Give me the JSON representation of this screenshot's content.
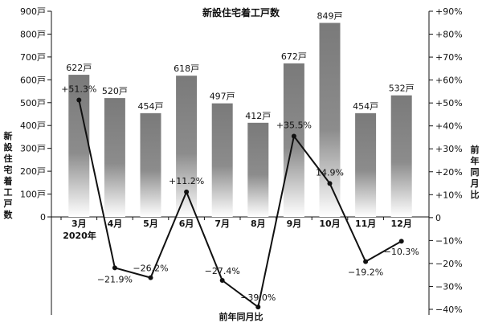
{
  "chart_data": {
    "type": "bar+line",
    "title": "新設住宅着工戸数",
    "categories": [
      "3月",
      "4月",
      "5月",
      "6月",
      "7月",
      "8月",
      "9月",
      "10月",
      "11月",
      "12月"
    ],
    "year_label": "2020年",
    "bar_series": {
      "name": "新設住宅着工戸数",
      "values": [
        622,
        520,
        454,
        618,
        497,
        412,
        672,
        849,
        454,
        532
      ],
      "labels": [
        "622戸",
        "520戸",
        "454戸",
        "618戸",
        "497戸",
        "412戸",
        "672戸",
        "849戸",
        "454戸",
        "532戸"
      ]
    },
    "line_series": {
      "name": "前年同月比",
      "values": [
        51.3,
        -21.9,
        -26.2,
        11.2,
        -27.4,
        -39.0,
        35.5,
        14.9,
        -19.2,
        -10.3
      ],
      "labels": [
        "+51.3%",
        "−21.9%",
        "−26.2%",
        "+11.2%",
        "−27.4%",
        "−39.0%",
        "+35.5%",
        "14.9%",
        "−19.2%",
        "−10.3%"
      ]
    },
    "left_axis": {
      "label": "新設住宅着工戸数",
      "ylim": [
        0,
        900
      ],
      "ticks": [
        0,
        100,
        200,
        300,
        400,
        500,
        600,
        700,
        800,
        900
      ],
      "tick_labels": [
        "0",
        "100戸",
        "200戸",
        "300戸",
        "400戸",
        "500戸",
        "600戸",
        "700戸",
        "800戸",
        "900戸"
      ]
    },
    "right_axis": {
      "label": "前年同月比",
      "ylim": [
        -40,
        90
      ],
      "ticks": [
        -40,
        -30,
        -20,
        -10,
        0,
        10,
        20,
        30,
        40,
        50,
        60,
        70,
        80,
        90
      ],
      "tick_labels": [
        "−40%",
        "−30%",
        "−20%",
        "−10%",
        "0",
        "+10%",
        "+20%",
        "+30%",
        "+40%",
        "+50%",
        "+60%",
        "+70%",
        "+80%",
        "+90%"
      ]
    },
    "bottom_label": "前年同月比",
    "colors": {
      "bar_top": "#7a7a7a",
      "bar_bottom": "#ffffff",
      "line": "#111111"
    }
  }
}
